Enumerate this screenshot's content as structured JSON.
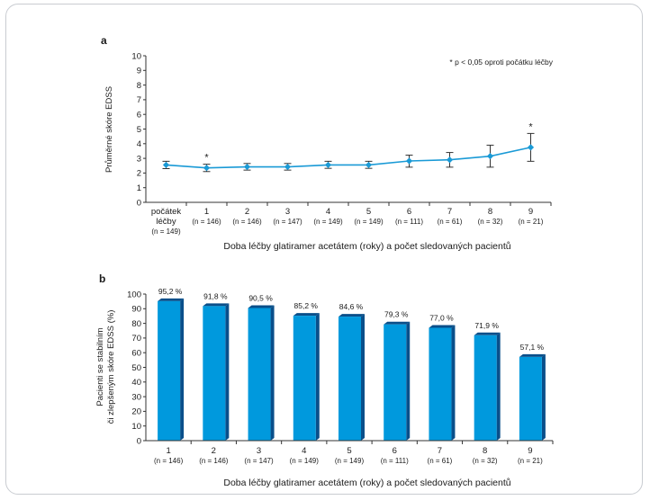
{
  "chart_data": [
    {
      "panel": "a",
      "type": "line",
      "title": "",
      "ylabel": "Průměrné skóre EDSS",
      "xlabel": "Doba léčby glatiramer acetátem (roky) a počet sledovaných pacientů",
      "ylim": [
        0,
        10
      ],
      "yticks": [
        "0",
        "1",
        "2",
        "3",
        "4",
        "5",
        "6",
        "7",
        "8",
        "9",
        "10"
      ],
      "annotation": "* p < 0,05 oproti počátku léčby",
      "categories": [
        "počátek léčby",
        "1",
        "2",
        "3",
        "4",
        "5",
        "6",
        "7",
        "8",
        "9"
      ],
      "n_labels": [
        "(n = 149)",
        "(n = 146)",
        "(n = 146)",
        "(n = 147)",
        "(n = 149)",
        "(n = 149)",
        "(n = 111)",
        "(n = 61)",
        "(n = 32)",
        "(n = 21)"
      ],
      "series": [
        {
          "values": [
            2.55,
            2.35,
            2.42,
            2.42,
            2.55,
            2.55,
            2.82,
            2.9,
            3.15,
            3.75
          ],
          "err_low": [
            2.3,
            2.1,
            2.2,
            2.2,
            2.32,
            2.32,
            2.4,
            2.4,
            2.4,
            2.8
          ],
          "err_high": [
            2.8,
            2.6,
            2.65,
            2.65,
            2.8,
            2.8,
            3.22,
            3.4,
            3.9,
            4.7
          ],
          "significant": [
            false,
            true,
            false,
            false,
            false,
            false,
            false,
            false,
            false,
            true
          ],
          "color": "#1a9ad6"
        }
      ],
      "grid": false
    },
    {
      "panel": "b",
      "type": "bar",
      "title": "",
      "ylabel_lines": [
        "Pacienti se stabilním",
        "či zlepšeným skóre EDSS (%)"
      ],
      "xlabel": "Doba léčby glatiramer acetátem (roky) a počet sledovaných pacientů",
      "ylim": [
        0,
        100
      ],
      "yticks": [
        "0",
        "10",
        "20",
        "30",
        "40",
        "50",
        "60",
        "70",
        "80",
        "90",
        "100"
      ],
      "categories": [
        "1",
        "2",
        "3",
        "4",
        "5",
        "6",
        "7",
        "8",
        "9"
      ],
      "n_labels": [
        "(n = 146)",
        "(n = 146)",
        "(n = 147)",
        "(n = 149)",
        "(n = 149)",
        "(n = 111)",
        "(n = 61)",
        "(n = 32)",
        "(n = 21)"
      ],
      "values": [
        95.2,
        91.8,
        90.5,
        85.2,
        84.6,
        79.3,
        77.0,
        71.9,
        57.1
      ],
      "value_labels": [
        "95,2 %",
        "91,8 %",
        "90,5 %",
        "85,2 %",
        "84,6 %",
        "79,3 %",
        "77,0 %",
        "71,9 %",
        "57,1 %"
      ],
      "bar_color": "#0099dd",
      "bar_side_color": "#0a4f8a",
      "grid": false
    }
  ]
}
